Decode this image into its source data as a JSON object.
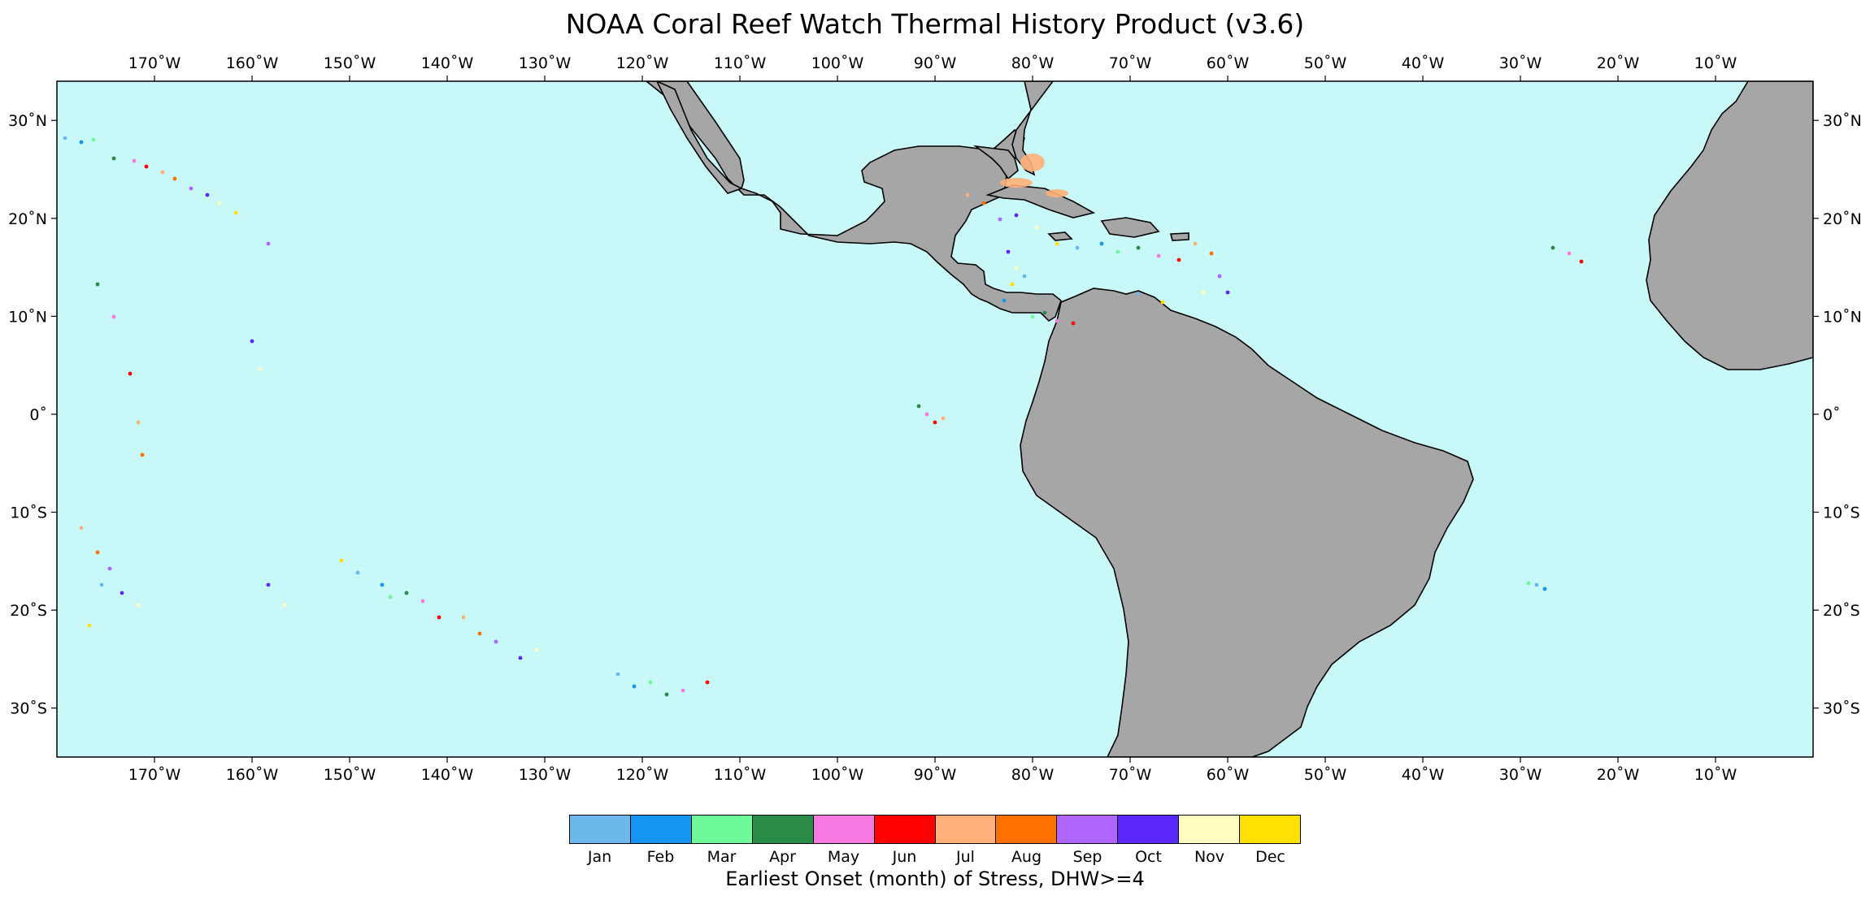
{
  "title": "NOAA Coral Reef Watch Thermal History Product (v3.6)",
  "map": {
    "lon_range": [
      -180,
      0
    ],
    "lat_range": [
      -35,
      34
    ],
    "ocean_color": "#c8f8f8",
    "land_color": "#a6a6a6",
    "coastline_color": "#000000",
    "lon_ticks": [
      "170˚W",
      "160˚W",
      "150˚W",
      "140˚W",
      "130˚W",
      "120˚W",
      "110˚W",
      "100˚W",
      "90˚W",
      "80˚W",
      "70˚W",
      "60˚W",
      "50˚W",
      "40˚W",
      "30˚W",
      "20˚W",
      "10˚W"
    ],
    "lat_ticks": [
      "30˚N",
      "20˚N",
      "10˚N",
      "0˚",
      "10˚S",
      "20˚S",
      "30˚S"
    ]
  },
  "colorbar": {
    "title": "Earliest Onset (month) of Stress, DHW>=4",
    "months": [
      {
        "label": "Jan",
        "color": "#6cb8ec"
      },
      {
        "label": "Feb",
        "color": "#1496f0"
      },
      {
        "label": "Mar",
        "color": "#6efa9a"
      },
      {
        "label": "Apr",
        "color": "#2a8a48"
      },
      {
        "label": "May",
        "color": "#f678e0"
      },
      {
        "label": "Jun",
        "color": "#ff0000"
      },
      {
        "label": "Jul",
        "color": "#ffb078"
      },
      {
        "label": "Aug",
        "color": "#ff7000"
      },
      {
        "label": "Sep",
        "color": "#b066fa"
      },
      {
        "label": "Oct",
        "color": "#5a28fa"
      },
      {
        "label": "Nov",
        "color": "#fffcc0"
      },
      {
        "label": "Dec",
        "color": "#ffe000"
      }
    ]
  }
}
